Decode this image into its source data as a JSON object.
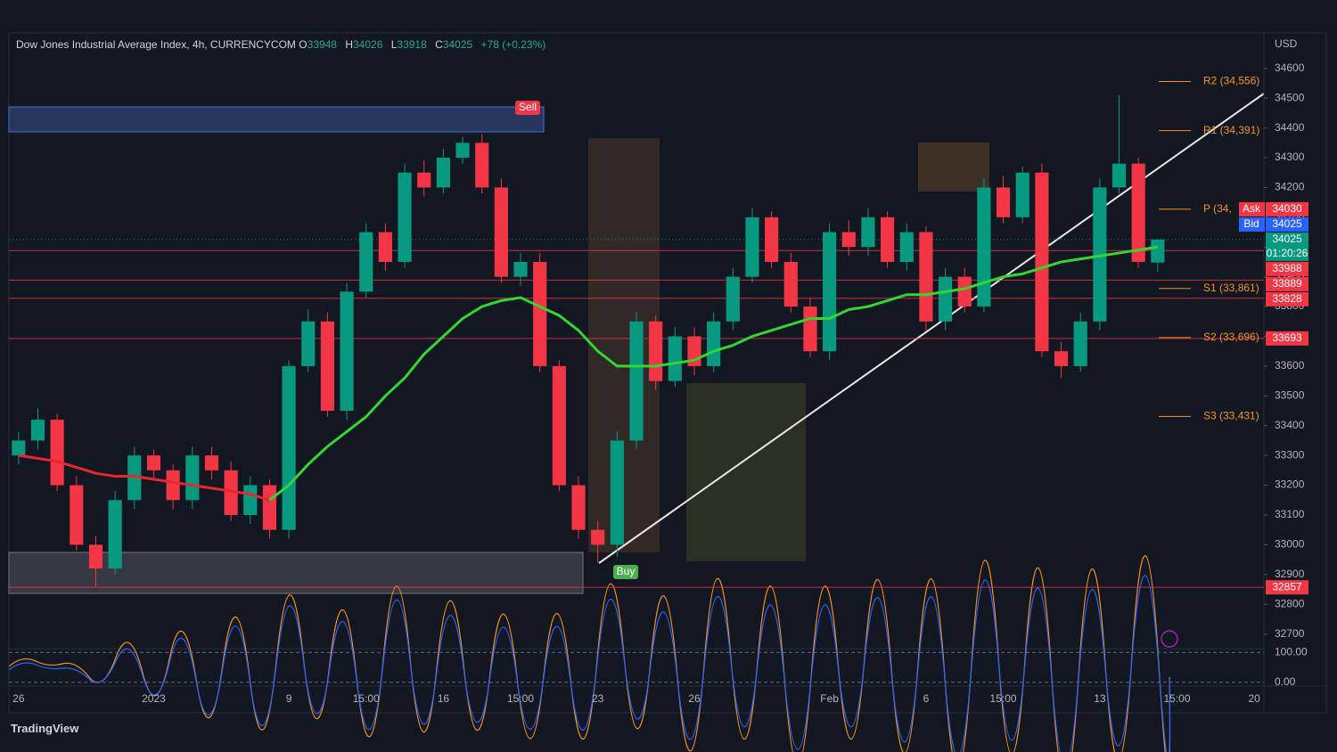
{
  "header": {
    "title": "Dow Jones Industrial Average Index, 4h, CURRENCYCOM",
    "open_label": "O",
    "open": 33948,
    "high_label": "H",
    "high": 34026,
    "low_label": "L",
    "low": 33918,
    "close_label": "C",
    "close": 34025,
    "change": "+78 (+0.23%)",
    "brand": "TradingView"
  },
  "chart_data": {
    "type": "candlestick",
    "currency": "USD",
    "categories": [
      "26",
      null,
      null,
      null,
      null,
      null,
      null,
      "2023",
      null,
      null,
      null,
      null,
      null,
      null,
      "9",
      null,
      null,
      null,
      "15:00",
      null,
      null,
      null,
      "16",
      null,
      null,
      null,
      "15:00",
      null,
      null,
      null,
      "23",
      null,
      null,
      null,
      null,
      "26",
      null,
      null,
      null,
      null,
      null,
      null,
      "Feb",
      null,
      null,
      null,
      null,
      "6",
      null,
      null,
      null,
      "15:00",
      null,
      null,
      null,
      null,
      "13",
      null,
      null,
      null,
      "15:00",
      null,
      null,
      null,
      "20"
    ],
    "open": [
      33300,
      33350,
      33420,
      33200,
      33000,
      32920,
      33150,
      33300,
      33250,
      33150,
      33300,
      33250,
      33100,
      33200,
      33050,
      33600,
      33750,
      33450,
      33850,
      34050,
      33950,
      34250,
      34200,
      34300,
      34350,
      34200,
      33900,
      33950,
      33600,
      33200,
      33050,
      33000,
      33350,
      33750,
      33550,
      33700,
      33600,
      33750,
      33900,
      34100,
      33950,
      33800,
      33650,
      34050,
      34000,
      34100,
      33950,
      34050,
      33750,
      33900,
      33800,
      34200,
      34100,
      34250,
      33650,
      33600,
      33750,
      34200,
      34280,
      33948,
      null,
      null,
      null,
      null,
      null
    ],
    "high": [
      33380,
      33460,
      33440,
      33230,
      33030,
      33180,
      33330,
      33320,
      33270,
      33330,
      33330,
      33280,
      33230,
      33220,
      33620,
      33790,
      33780,
      33880,
      34080,
      34080,
      34280,
      34290,
      34330,
      34370,
      34380,
      34230,
      33980,
      33980,
      33620,
      33230,
      33080,
      33380,
      33780,
      33770,
      33730,
      33730,
      33780,
      33930,
      34130,
      34120,
      33980,
      33830,
      34080,
      34090,
      34130,
      34120,
      34080,
      34070,
      33930,
      33930,
      34230,
      34240,
      34270,
      34280,
      33680,
      33780,
      34230,
      34510,
      34300,
      34026,
      null,
      null,
      null,
      null,
      null
    ],
    "low": [
      33270,
      33320,
      33180,
      32980,
      32860,
      32900,
      33120,
      33220,
      33120,
      33120,
      33220,
      33080,
      33070,
      33020,
      33020,
      33580,
      33430,
      33420,
      33830,
      33920,
      33930,
      34170,
      34180,
      34280,
      34180,
      33880,
      33870,
      33580,
      33180,
      33020,
      32940,
      32960,
      33320,
      33520,
      33530,
      33570,
      33580,
      33720,
      33880,
      33930,
      33780,
      33630,
      33620,
      33970,
      33970,
      33930,
      33920,
      33720,
      33720,
      33780,
      33780,
      34080,
      34080,
      33630,
      33560,
      33580,
      33720,
      34180,
      33930,
      33918,
      null,
      null,
      null,
      null,
      null
    ],
    "close": [
      33350,
      33420,
      33200,
      33000,
      32920,
      33150,
      33300,
      33250,
      33150,
      33300,
      33250,
      33100,
      33200,
      33050,
      33600,
      33750,
      33450,
      33850,
      34050,
      33950,
      34250,
      34200,
      34300,
      34350,
      34200,
      33900,
      33950,
      33600,
      33200,
      33050,
      33000,
      33350,
      33750,
      33550,
      33700,
      33600,
      33750,
      33900,
      34100,
      33950,
      33800,
      33650,
      34050,
      34000,
      34100,
      33950,
      34050,
      33750,
      33900,
      33800,
      34200,
      34100,
      34250,
      33650,
      33600,
      33750,
      34200,
      34280,
      33950,
      34025,
      null,
      null,
      null,
      null,
      null
    ],
    "up_color": "#089981",
    "down_color": "#f23645",
    "ylim": [
      32660,
      34710
    ],
    "yticks": [
      32700,
      32800,
      32900,
      33000,
      33100,
      33200,
      33300,
      33400,
      33500,
      33600,
      33700,
      33800,
      33900,
      34000,
      34100,
      34200,
      34300,
      34400,
      34500,
      34600
    ],
    "moving_averages": [
      {
        "color": "#e8262f",
        "values": [
          33300,
          33290,
          33280,
          33260,
          33240,
          33230,
          33230,
          33220,
          33210,
          33200,
          33190,
          33180,
          33170,
          33150,
          null,
          null,
          null,
          null,
          null,
          null,
          null,
          null,
          null,
          null,
          null,
          null,
          null,
          null,
          null,
          null,
          null,
          null,
          null,
          null,
          null,
          null,
          null,
          null,
          null,
          null,
          null,
          null,
          null,
          null,
          null,
          null,
          null,
          null,
          null,
          null,
          null,
          null,
          null,
          null,
          null,
          null,
          null,
          null,
          null,
          null,
          null,
          null,
          null,
          null,
          null
        ]
      },
      {
        "color": "#33d633",
        "values": [
          null,
          null,
          null,
          null,
          null,
          null,
          null,
          null,
          null,
          null,
          null,
          null,
          null,
          33150,
          33200,
          33270,
          33330,
          33380,
          33430,
          33500,
          33560,
          33640,
          33700,
          33760,
          33800,
          33820,
          33830,
          33800,
          33770,
          33720,
          33650,
          33600,
          33600,
          33600,
          33610,
          33620,
          33650,
          33670,
          33700,
          33720,
          33740,
          33760,
          33760,
          33790,
          33800,
          33820,
          33840,
          33840,
          33850,
          33860,
          33880,
          33900,
          33910,
          33930,
          33950,
          33960,
          33970,
          33980,
          33990,
          34000,
          null,
          null,
          null,
          null,
          null
        ]
      }
    ],
    "pivot_color": "#f7931a",
    "pivots": [
      {
        "value": 34556,
        "label": "R2 (34,556)"
      },
      {
        "value": 34391,
        "label": "R1 (34,391)"
      },
      {
        "value": 34127,
        "label": "P (34,"
      },
      {
        "value": 33861,
        "label": "S1 (33,861)"
      },
      {
        "value": 33696,
        "label": "S2 (33,696)"
      },
      {
        "value": 33431,
        "label": "S3 (33,431)"
      }
    ],
    "level_color": "#f23645",
    "levels": [
      33988,
      33889,
      33828,
      33693,
      32857
    ],
    "ask": {
      "label": "Ask",
      "value": 34030
    },
    "bid": {
      "label": "Bid",
      "value": 34025
    },
    "last": 34025,
    "countdown": "01:20:26",
    "signals": {
      "sell": "Sell",
      "buy": "Buy"
    },
    "oscillator": {
      "ylim": [
        -12.5,
        112.5
      ],
      "yticks": [
        {
          "value": 100,
          "label": "100.00"
        },
        {
          "value": 0,
          "label": "0.00"
        }
      ]
    }
  }
}
